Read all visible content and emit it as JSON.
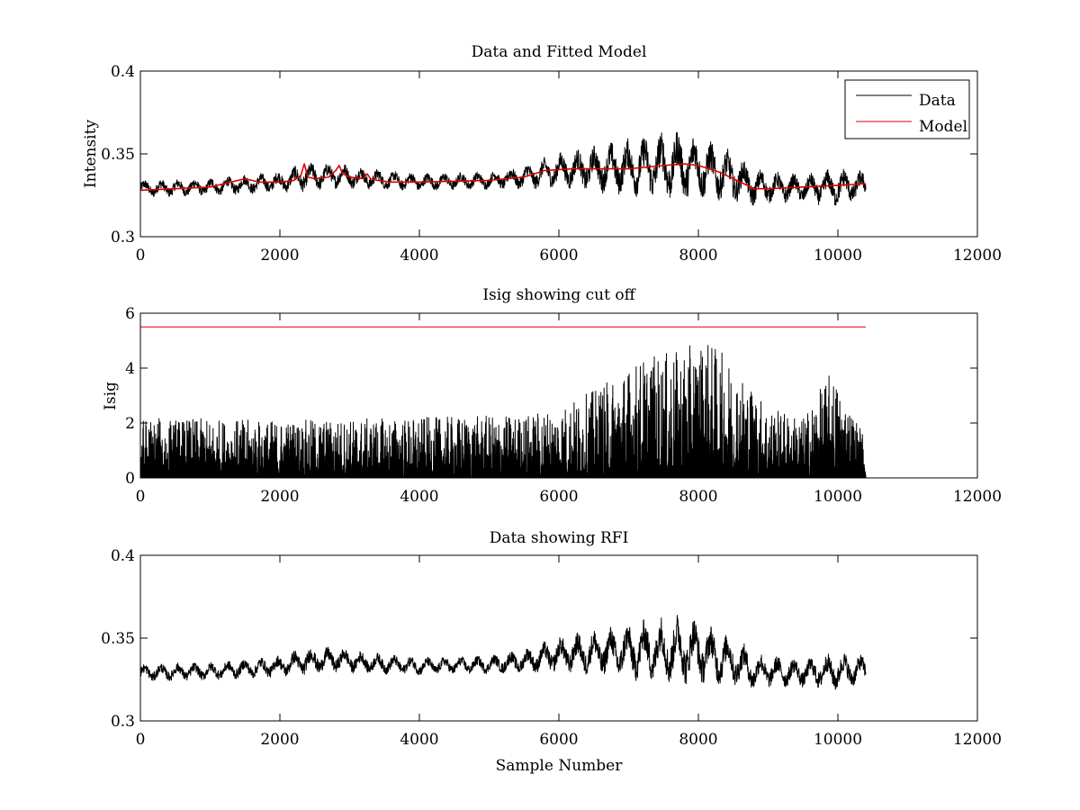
{
  "chart_data": [
    {
      "type": "line",
      "title": "Data and Fitted Model",
      "xlabel": "",
      "ylabel": "Intensity",
      "xlim": [
        0,
        12000
      ],
      "ylim": [
        0.3,
        0.4
      ],
      "xticks": [
        0,
        2000,
        4000,
        6000,
        8000,
        10000,
        12000
      ],
      "yticks": [
        0.3,
        0.35,
        0.4
      ],
      "xtick_labels": [
        "0",
        "2000",
        "4000",
        "6000",
        "8000",
        "10000",
        "12000"
      ],
      "ytick_labels": [
        "0.3",
        "0.35",
        "0.4"
      ],
      "grid": false,
      "legend": {
        "placement": "top-right",
        "entries": [
          "Data",
          "Model"
        ]
      },
      "series": [
        {
          "name": "Data",
          "color": "#000000",
          "kind": "noisy",
          "n_samples": 10400,
          "envelope": {
            "x": [
              0,
              1000,
              2000,
              2350,
              2850,
              3250,
              4000,
              5000,
              5500,
              6000,
              6500,
              7000,
              7500,
              7700,
              8000,
              8500,
              8800,
              9000,
              9500,
              10000,
              10400
            ],
            "center": [
              0.329,
              0.33,
              0.333,
              0.336,
              0.337,
              0.335,
              0.333,
              0.334,
              0.336,
              0.34,
              0.341,
              0.342,
              0.343,
              0.343,
              0.342,
              0.336,
              0.33,
              0.33,
              0.329,
              0.33,
              0.331
            ],
            "half_range": [
              0.005,
              0.005,
              0.006,
              0.008,
              0.007,
              0.006,
              0.005,
              0.005,
              0.007,
              0.01,
              0.013,
              0.016,
              0.019,
              0.02,
              0.018,
              0.014,
              0.011,
              0.009,
              0.008,
              0.011,
              0.008
            ]
          }
        },
        {
          "name": "Model",
          "color": "#e00000",
          "kind": "smooth",
          "x": [
            0,
            500,
            1000,
            1400,
            1500,
            1700,
            2000,
            2200,
            2300,
            2350,
            2400,
            2500,
            2700,
            2800,
            2850,
            2900,
            3000,
            3200,
            3250,
            3300,
            3400,
            3600,
            4000,
            5000,
            5500,
            5800,
            6200,
            6600,
            7000,
            7500,
            7800,
            8000,
            8300,
            8600,
            8800,
            9000,
            9500,
            10000,
            10400
          ],
          "y": [
            0.328,
            0.329,
            0.33,
            0.334,
            0.335,
            0.333,
            0.333,
            0.334,
            0.337,
            0.344,
            0.336,
            0.335,
            0.336,
            0.34,
            0.343,
            0.338,
            0.336,
            0.335,
            0.338,
            0.335,
            0.334,
            0.333,
            0.333,
            0.334,
            0.336,
            0.34,
            0.341,
            0.341,
            0.341,
            0.343,
            0.344,
            0.343,
            0.339,
            0.333,
            0.329,
            0.329,
            0.33,
            0.331,
            0.332
          ]
        }
      ]
    },
    {
      "type": "line",
      "title": "Isig showing cut off",
      "xlabel": "",
      "ylabel": "Isig",
      "xlim": [
        0,
        12000
      ],
      "ylim": [
        0,
        6
      ],
      "xticks": [
        0,
        2000,
        4000,
        6000,
        8000,
        10000,
        12000
      ],
      "yticks": [
        0,
        2,
        4,
        6
      ],
      "xtick_labels": [
        "0",
        "2000",
        "4000",
        "6000",
        "8000",
        "10000",
        "12000"
      ],
      "ytick_labels": [
        "0",
        "2",
        "4",
        "6"
      ],
      "grid": false,
      "series": [
        {
          "color": "#000000",
          "kind": "spikes",
          "n_samples": 10400,
          "envelope": {
            "x": [
              0,
              2000,
              4000,
              5500,
              6000,
              6500,
              7200,
              7700,
              8100,
              8500,
              9000,
              9500,
              9900,
              10400
            ],
            "max": [
              2.2,
              2.1,
              2.2,
              2.3,
              2.6,
              3.2,
              4.4,
              4.6,
              5.1,
              4.2,
              2.6,
              2.2,
              3.9,
              1.5
            ]
          }
        },
        {
          "color": "#e00000",
          "kind": "line",
          "x": [
            0,
            10400
          ],
          "y": [
            5.5,
            5.5
          ]
        }
      ]
    },
    {
      "type": "line",
      "title": "Data showing RFI",
      "xlabel": "Sample Number",
      "ylabel": "",
      "xlim": [
        0,
        12000
      ],
      "ylim": [
        0.3,
        0.4
      ],
      "xticks": [
        0,
        2000,
        4000,
        6000,
        8000,
        10000,
        12000
      ],
      "yticks": [
        0.3,
        0.35,
        0.4
      ],
      "xtick_labels": [
        "0",
        "2000",
        "4000",
        "6000",
        "8000",
        "10000",
        "12000"
      ],
      "ytick_labels": [
        "0.3",
        "0.35",
        "0.4"
      ],
      "grid": false,
      "series": [
        {
          "color": "#000000",
          "kind": "noisy",
          "n_samples": 10400,
          "envelope": {
            "x": [
              0,
              1000,
              2000,
              2350,
              2850,
              3250,
              4000,
              5000,
              5500,
              6000,
              6500,
              7000,
              7500,
              7700,
              8000,
              8500,
              8800,
              9000,
              9500,
              10000,
              10400
            ],
            "center": [
              0.329,
              0.33,
              0.333,
              0.336,
              0.337,
              0.335,
              0.333,
              0.334,
              0.336,
              0.34,
              0.341,
              0.342,
              0.343,
              0.343,
              0.342,
              0.336,
              0.33,
              0.33,
              0.329,
              0.33,
              0.331
            ],
            "half_range": [
              0.005,
              0.005,
              0.006,
              0.008,
              0.007,
              0.006,
              0.005,
              0.005,
              0.007,
              0.01,
              0.013,
              0.016,
              0.019,
              0.02,
              0.018,
              0.014,
              0.011,
              0.009,
              0.008,
              0.011,
              0.008
            ]
          }
        }
      ]
    }
  ]
}
